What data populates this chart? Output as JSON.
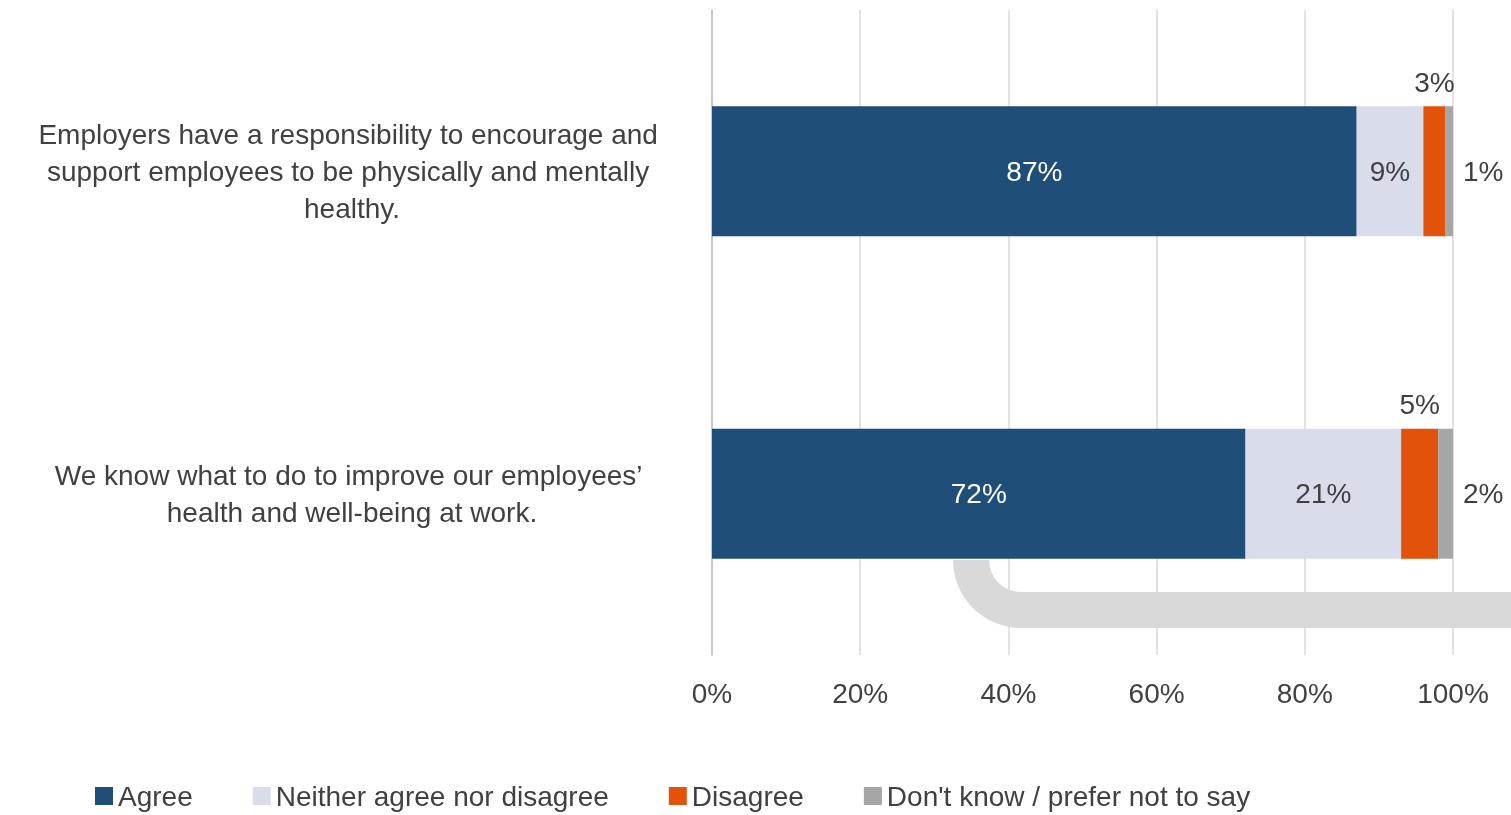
{
  "chart_data": {
    "type": "bar",
    "orientation": "horizontal",
    "stacked": true,
    "categories": [
      "Employers have a responsibility to encourage and support employees to be physically and mentally healthy.",
      "We know what to do to improve our employees’ health and well-being at work."
    ],
    "series": [
      {
        "name": "Agree",
        "color": "#1f4e79",
        "values": [
          87,
          72
        ],
        "value_labels": [
          "87%",
          "72%"
        ]
      },
      {
        "name": "Neither agree nor disagree",
        "color": "#d9dcea",
        "values": [
          9,
          21
        ],
        "value_labels": [
          "9%",
          "21%"
        ]
      },
      {
        "name": "Disagree",
        "color": "#e2520b",
        "values": [
          3,
          5
        ],
        "value_labels": [
          "3%",
          "5%"
        ]
      },
      {
        "name": "Don't know / prefer not to say",
        "color": "#a6a6a6",
        "values": [
          1,
          2
        ],
        "value_labels": [
          "1%",
          "2%"
        ]
      }
    ],
    "xlim": [
      0,
      100
    ],
    "xticks": [
      {
        "value": 0,
        "label": "0%"
      },
      {
        "value": 20,
        "label": "20%"
      },
      {
        "value": 40,
        "label": "40%"
      },
      {
        "value": 60,
        "label": "60%"
      },
      {
        "value": 80,
        "label": "80%"
      },
      {
        "value": 100,
        "label": "100%"
      }
    ],
    "grid": "x",
    "legend": "bottom"
  }
}
